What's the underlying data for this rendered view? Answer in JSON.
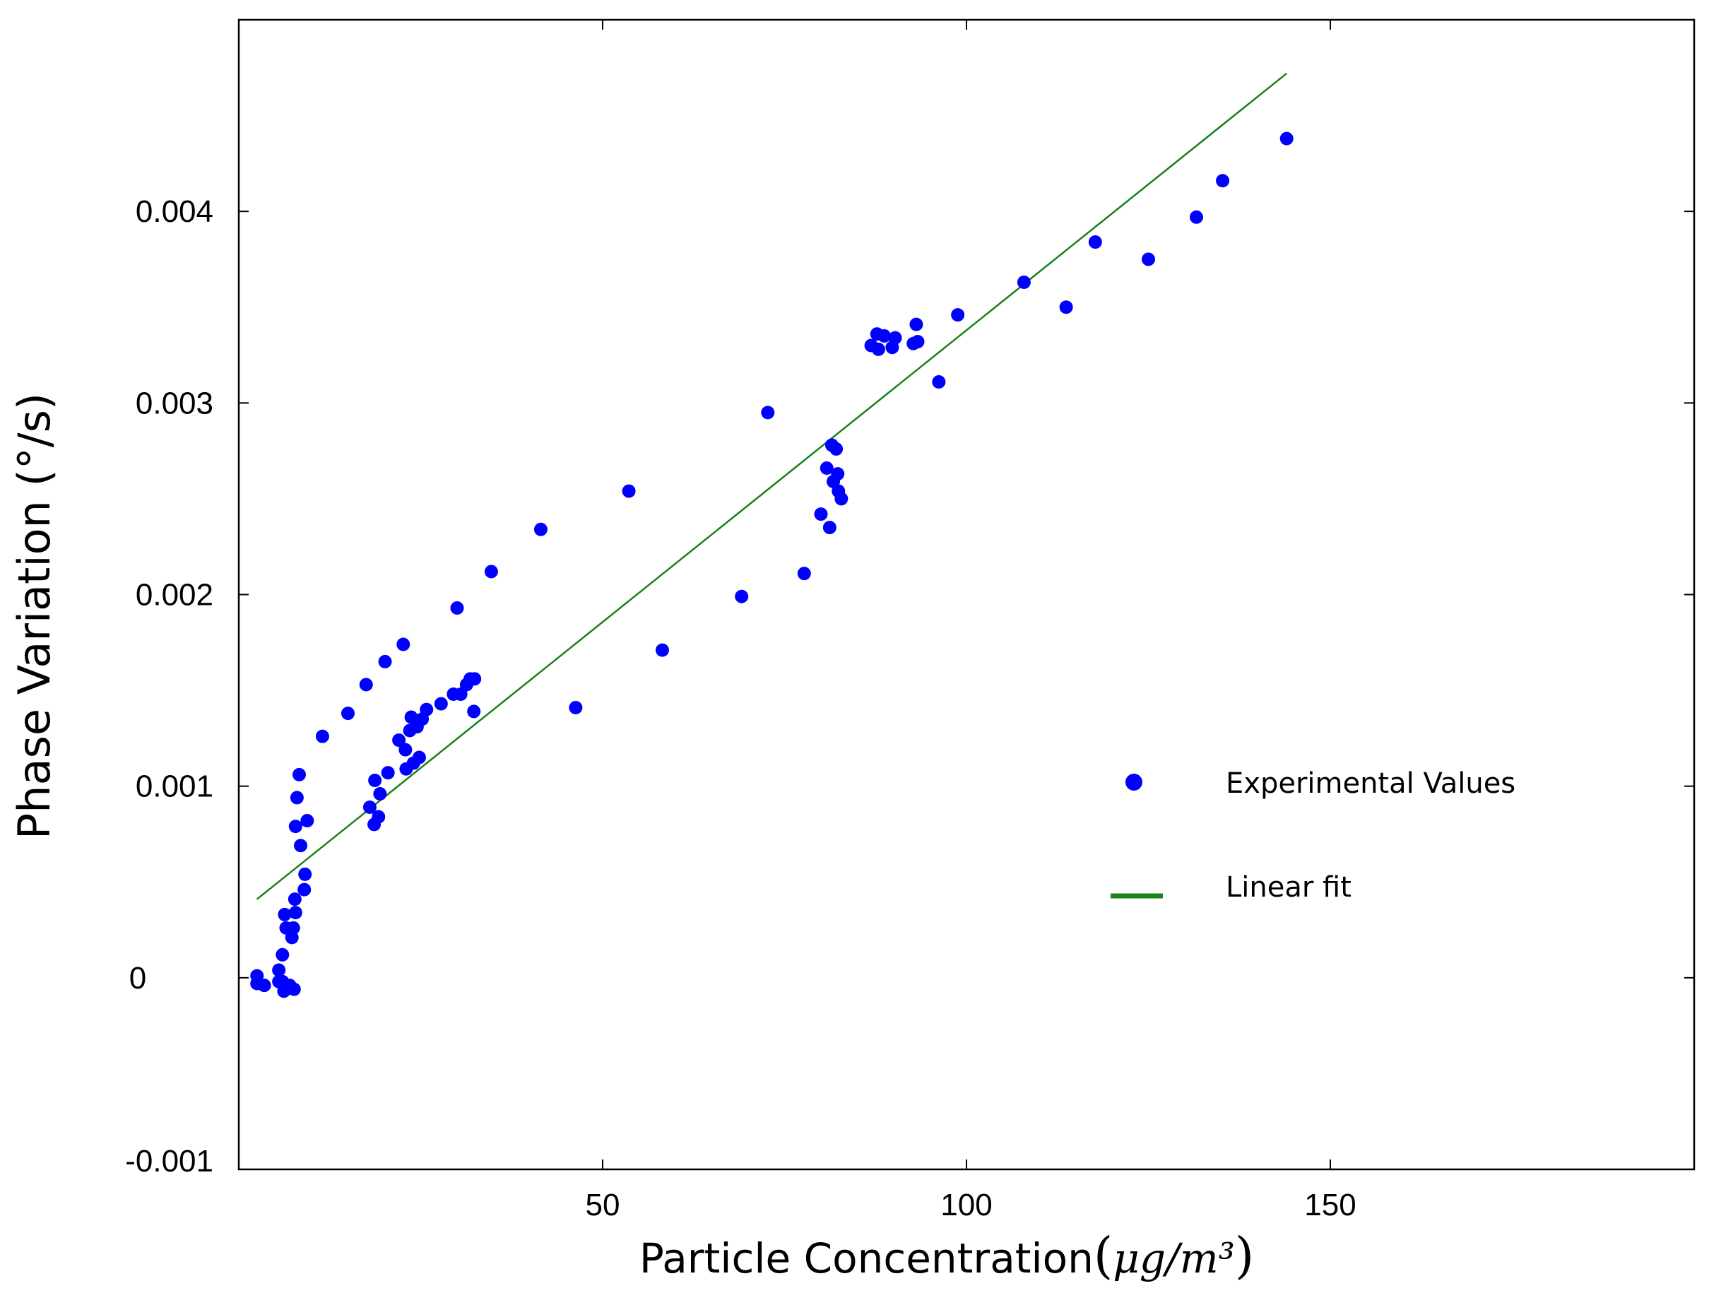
{
  "chart_data": {
    "type": "scatter",
    "title": "",
    "xlabel": "Particle Concentration",
    "xlabel_units": "μg/m³",
    "ylabel": "Phase Variation (°/s)",
    "xlim": [
      0,
      200
    ],
    "ylim": [
      -0.001,
      0.005
    ],
    "x_ticks": [
      50,
      100,
      150
    ],
    "x_tick_labels": [
      "50",
      "100",
      "150"
    ],
    "y_ticks": [
      -0.001,
      0,
      0.001,
      0.002,
      0.003,
      0.004
    ],
    "y_tick_labels": [
      "-0.001",
      "0",
      "0.001",
      "0.002",
      "0.003",
      "0.004"
    ],
    "grid": false,
    "legend_position": "center-right",
    "series": [
      {
        "name": "Experimental Values",
        "kind": "scatter",
        "color": "#0000ff",
        "points": [
          [
            2.5,
            1e-05
          ],
          [
            2.5,
            -3e-05
          ],
          [
            3.5,
            -4e-05
          ],
          [
            5.5,
            4e-05
          ],
          [
            5.5,
            -2e-05
          ],
          [
            6,
            0.00012
          ],
          [
            6,
            -2e-05
          ],
          [
            6.2,
            -7e-05
          ],
          [
            6.3,
            0.00033
          ],
          [
            6.5,
            0.00026
          ],
          [
            7,
            -4e-05
          ],
          [
            7.3,
            0.00021
          ],
          [
            7.5,
            0.00026
          ],
          [
            7.6,
            -6e-05
          ],
          [
            7.7,
            0.00041
          ],
          [
            7.8,
            0.00034
          ],
          [
            7.8,
            0.00079
          ],
          [
            8,
            0.00094
          ],
          [
            8.3,
            0.00106
          ],
          [
            8.5,
            0.00069
          ],
          [
            9,
            0.00046
          ],
          [
            9.1,
            0.00054
          ],
          [
            9.4,
            0.00082
          ],
          [
            11.5,
            0.00126
          ],
          [
            15,
            0.00138
          ],
          [
            17.5,
            0.00153
          ],
          [
            18,
            0.00089
          ],
          [
            18.6,
            0.0008
          ],
          [
            18.7,
            0.00103
          ],
          [
            19.2,
            0.00084
          ],
          [
            19.4,
            0.00096
          ],
          [
            20.1,
            0.00165
          ],
          [
            20.5,
            0.00107
          ],
          [
            22,
            0.00124
          ],
          [
            22.6,
            0.00174
          ],
          [
            22.9,
            0.00119
          ],
          [
            23,
            0.00109
          ],
          [
            23.5,
            0.00129
          ],
          [
            23.7,
            0.00136
          ],
          [
            24,
            0.00112
          ],
          [
            24.5,
            0.00131
          ],
          [
            24.8,
            0.00115
          ],
          [
            25.2,
            0.00135
          ],
          [
            25.8,
            0.0014
          ],
          [
            27.8,
            0.00143
          ],
          [
            29.5,
            0.00148
          ],
          [
            30,
            0.00193
          ],
          [
            30.5,
            0.00148
          ],
          [
            31.3,
            0.00153
          ],
          [
            31.8,
            0.00156
          ],
          [
            32.3,
            0.00139
          ],
          [
            32.4,
            0.00156
          ],
          [
            34.7,
            0.00212
          ],
          [
            41.5,
            0.00234
          ],
          [
            46.3,
            0.00141
          ],
          [
            53.6,
            0.00254
          ],
          [
            58.2,
            0.00171
          ],
          [
            69.1,
            0.00199
          ],
          [
            72.7,
            0.00295
          ],
          [
            77.7,
            0.00211
          ],
          [
            80,
            0.00242
          ],
          [
            80.8,
            0.00266
          ],
          [
            81.2,
            0.00235
          ],
          [
            81.5,
            0.00278
          ],
          [
            81.7,
            0.00259
          ],
          [
            82.1,
            0.00276
          ],
          [
            82.3,
            0.00263
          ],
          [
            82.4,
            0.00254
          ],
          [
            82.8,
            0.0025
          ],
          [
            86.9,
            0.0033
          ],
          [
            87.7,
            0.00336
          ],
          [
            87.9,
            0.00328
          ],
          [
            88.7,
            0.00335
          ],
          [
            89.8,
            0.00329
          ],
          [
            90.2,
            0.00334
          ],
          [
            92.7,
            0.00331
          ],
          [
            93.1,
            0.00341
          ],
          [
            93.3,
            0.00332
          ],
          [
            96.2,
            0.00311
          ],
          [
            98.8,
            0.00346
          ],
          [
            107.9,
            0.00363
          ],
          [
            113.7,
            0.0035
          ],
          [
            117.7,
            0.00384
          ],
          [
            125,
            0.00375
          ],
          [
            131.6,
            0.00397
          ],
          [
            135.2,
            0.00416
          ],
          [
            144,
            0.00438
          ]
        ]
      },
      {
        "name": "Linear fit",
        "kind": "line",
        "color": "#1a801a",
        "x": [
          2.5,
          144
        ],
        "y": [
          0.00041,
          0.00472
        ]
      }
    ]
  }
}
